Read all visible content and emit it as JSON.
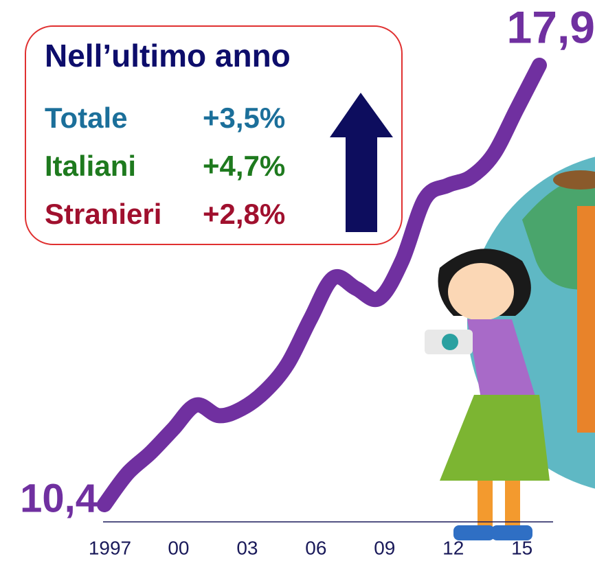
{
  "chart_data": {
    "type": "line",
    "categories": [
      "1997",
      null,
      null,
      "00",
      null,
      null,
      "03",
      null,
      null,
      "06",
      null,
      null,
      "09",
      null,
      null,
      "12",
      null,
      null,
      "15",
      null
    ],
    "series": [
      {
        "color": "#7030a0",
        "values": [
          10.4,
          10.93,
          11.28,
          11.69,
          12.1,
          11.92,
          12.04,
          12.33,
          12.8,
          13.57,
          14.27,
          14.09,
          13.92,
          14.56,
          15.62,
          15.85,
          15.99,
          16.38,
          17.14,
          17.9
        ],
        "value_labels": [
          "10,4",
          null,
          null,
          null,
          null,
          null,
          null,
          null,
          null,
          null,
          null,
          null,
          null,
          null,
          null,
          null,
          null,
          null,
          null,
          "17,9"
        ]
      }
    ],
    "annotation": {
      "title": "Nell’ultimo anno",
      "rows": [
        {
          "label": "Totale",
          "value": "+3,5%",
          "color": "#1b6f9a"
        },
        {
          "label": "Italiani",
          "value": "+4,7%",
          "color": "#1e7a1e"
        },
        {
          "label": "Stranieri",
          "value": "+2,8%",
          "color": "#a0102e"
        }
      ]
    }
  }
}
